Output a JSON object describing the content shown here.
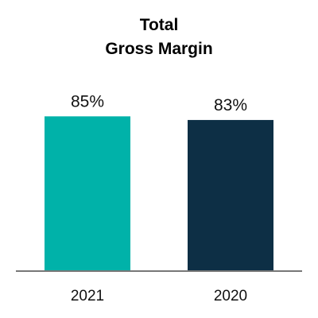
{
  "chart_data": {
    "type": "bar",
    "title_lines": [
      "Total",
      "Gross Margin"
    ],
    "categories": [
      "2021",
      "2020"
    ],
    "values": [
      85,
      83
    ],
    "value_labels": [
      "85%",
      "83%"
    ],
    "colors": [
      "#00b2a9",
      "#0d2f45"
    ],
    "ylim": [
      0,
      100
    ],
    "grid": false,
    "legend": "none",
    "axis_color": "#777777"
  }
}
